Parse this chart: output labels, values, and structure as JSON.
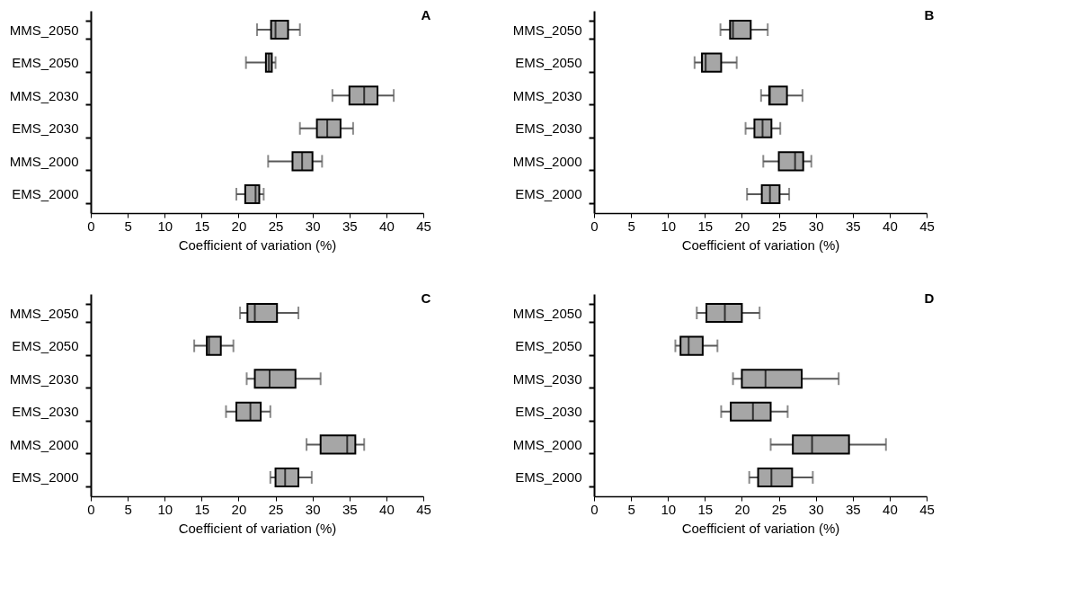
{
  "chart_data": [
    {
      "type": "box",
      "orientation": "horizontal",
      "title": "A",
      "xlabel": "Coefficient of variation (%)",
      "xlim": [
        0,
        45
      ],
      "xticks": [
        0,
        5,
        10,
        15,
        20,
        25,
        30,
        35,
        40,
        45
      ],
      "color": "#a6a6a6",
      "categories": [
        "MMS_2050",
        "EMS_2050",
        "MMS_2030",
        "EMS_2030",
        "MMS_2000",
        "EMS_2000"
      ],
      "boxes": [
        {
          "low": 22.5,
          "q1": 24.4,
          "median": 25.0,
          "q3": 26.7,
          "high": 28.3
        },
        {
          "low": 21.0,
          "q1": 23.7,
          "median": 24.1,
          "q3": 24.5,
          "high": 25.0
        },
        {
          "low": 32.7,
          "q1": 35.0,
          "median": 37.0,
          "q3": 38.8,
          "high": 41.0
        },
        {
          "low": 28.3,
          "q1": 30.6,
          "median": 32.0,
          "q3": 33.8,
          "high": 35.5
        },
        {
          "low": 24.0,
          "q1": 27.3,
          "median": 28.6,
          "q3": 30.0,
          "high": 31.3
        },
        {
          "low": 19.7,
          "q1": 20.9,
          "median": 22.3,
          "q3": 22.8,
          "high": 23.4
        }
      ]
    },
    {
      "type": "box",
      "orientation": "horizontal",
      "title": "B",
      "xlabel": "Coefficient of variation (%)",
      "xlim": [
        0,
        45
      ],
      "xticks": [
        0,
        5,
        10,
        15,
        20,
        25,
        30,
        35,
        40,
        45
      ],
      "color": "#a6a6a6",
      "categories": [
        "MMS_2050",
        "EMS_2050",
        "MMS_2030",
        "EMS_2030",
        "MMS_2000",
        "EMS_2000"
      ],
      "boxes": [
        {
          "low": 17.1,
          "q1": 18.4,
          "median": 18.8,
          "q3": 21.2,
          "high": 23.5
        },
        {
          "low": 13.6,
          "q1": 14.6,
          "median": 15.1,
          "q3": 17.2,
          "high": 19.3
        },
        {
          "low": 22.6,
          "q1": 23.7,
          "median": 23.8,
          "q3": 26.1,
          "high": 28.2
        },
        {
          "low": 20.5,
          "q1": 21.7,
          "median": 22.8,
          "q3": 24.0,
          "high": 25.2
        },
        {
          "low": 22.9,
          "q1": 25.0,
          "median": 27.2,
          "q3": 28.3,
          "high": 29.4
        },
        {
          "low": 20.7,
          "q1": 22.7,
          "median": 23.8,
          "q3": 25.1,
          "high": 26.4
        }
      ]
    },
    {
      "type": "box",
      "orientation": "horizontal",
      "title": "C",
      "xlabel": "Coefficient of variation (%)",
      "xlim": [
        0,
        45
      ],
      "xticks": [
        0,
        5,
        10,
        15,
        20,
        25,
        30,
        35,
        40,
        45
      ],
      "color": "#a6a6a6",
      "categories": [
        "MMS_2050",
        "EMS_2050",
        "MMS_2030",
        "EMS_2030",
        "MMS_2000",
        "EMS_2000"
      ],
      "boxes": [
        {
          "low": 20.2,
          "q1": 21.2,
          "median": 22.2,
          "q3": 25.2,
          "high": 28.1
        },
        {
          "low": 14.0,
          "q1": 15.7,
          "median": 16.0,
          "q3": 17.6,
          "high": 19.3
        },
        {
          "low": 21.1,
          "q1": 22.2,
          "median": 24.2,
          "q3": 27.7,
          "high": 31.1
        },
        {
          "low": 18.3,
          "q1": 19.7,
          "median": 21.6,
          "q3": 23.0,
          "high": 24.3
        },
        {
          "low": 29.2,
          "q1": 31.1,
          "median": 34.7,
          "q3": 35.8,
          "high": 37.0
        },
        {
          "low": 24.3,
          "q1": 25.0,
          "median": 26.3,
          "q3": 28.1,
          "high": 29.9
        }
      ]
    },
    {
      "type": "box",
      "orientation": "horizontal",
      "title": "D",
      "xlabel": "Coefficient of variation (%)",
      "xlim": [
        0,
        45
      ],
      "xticks": [
        0,
        5,
        10,
        15,
        20,
        25,
        30,
        35,
        40,
        45
      ],
      "color": "#a6a6a6",
      "categories": [
        "MMS_2050",
        "EMS_2050",
        "MMS_2030",
        "EMS_2030",
        "MMS_2000",
        "EMS_2000"
      ],
      "boxes": [
        {
          "low": 13.9,
          "q1": 15.2,
          "median": 17.7,
          "q3": 20.0,
          "high": 22.4
        },
        {
          "low": 11.0,
          "q1": 11.7,
          "median": 12.8,
          "q3": 14.7,
          "high": 16.7
        },
        {
          "low": 18.8,
          "q1": 20.0,
          "median": 23.2,
          "q3": 28.1,
          "high": 33.1
        },
        {
          "low": 17.2,
          "q1": 18.5,
          "median": 21.5,
          "q3": 23.9,
          "high": 26.2
        },
        {
          "low": 23.9,
          "q1": 26.9,
          "median": 29.5,
          "q3": 34.5,
          "high": 39.5
        },
        {
          "low": 21.0,
          "q1": 22.2,
          "median": 24.0,
          "q3": 26.8,
          "high": 29.6
        }
      ]
    }
  ]
}
